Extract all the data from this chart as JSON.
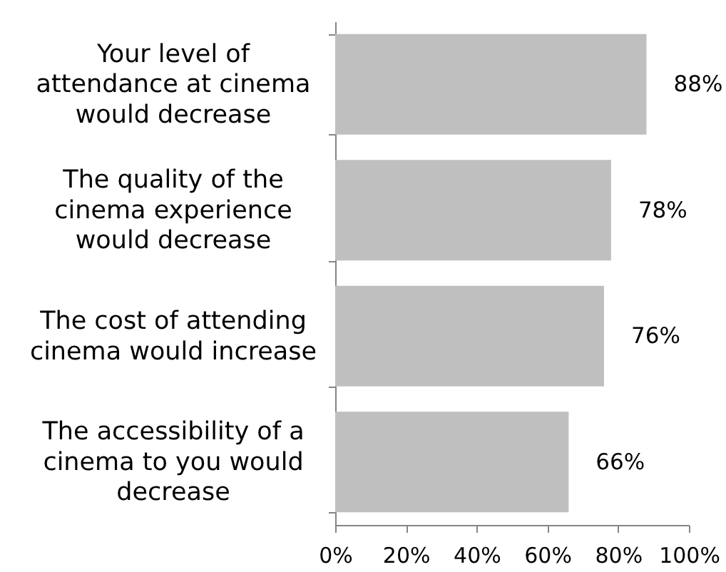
{
  "chart_data": {
    "type": "bar",
    "orientation": "horizontal",
    "categories": [
      "Your level of attendance at cinema would decrease",
      "The quality of the cinema experience would decrease",
      "The cost of attending cinema would increase",
      "The accessibility of a cinema to you would decrease"
    ],
    "values": [
      88,
      78,
      76,
      66
    ],
    "color": "#bfbfbf",
    "value_labels": [
      "88%",
      "78%",
      "76%",
      "66%"
    ],
    "xlim": [
      0,
      100
    ],
    "xticks": [
      {
        "value": 0,
        "label": "0%"
      },
      {
        "value": 20,
        "label": "20%"
      },
      {
        "value": 40,
        "label": "40%"
      },
      {
        "value": 60,
        "label": "60%"
      },
      {
        "value": 80,
        "label": "80%"
      },
      {
        "value": 100,
        "label": "100%"
      }
    ]
  }
}
